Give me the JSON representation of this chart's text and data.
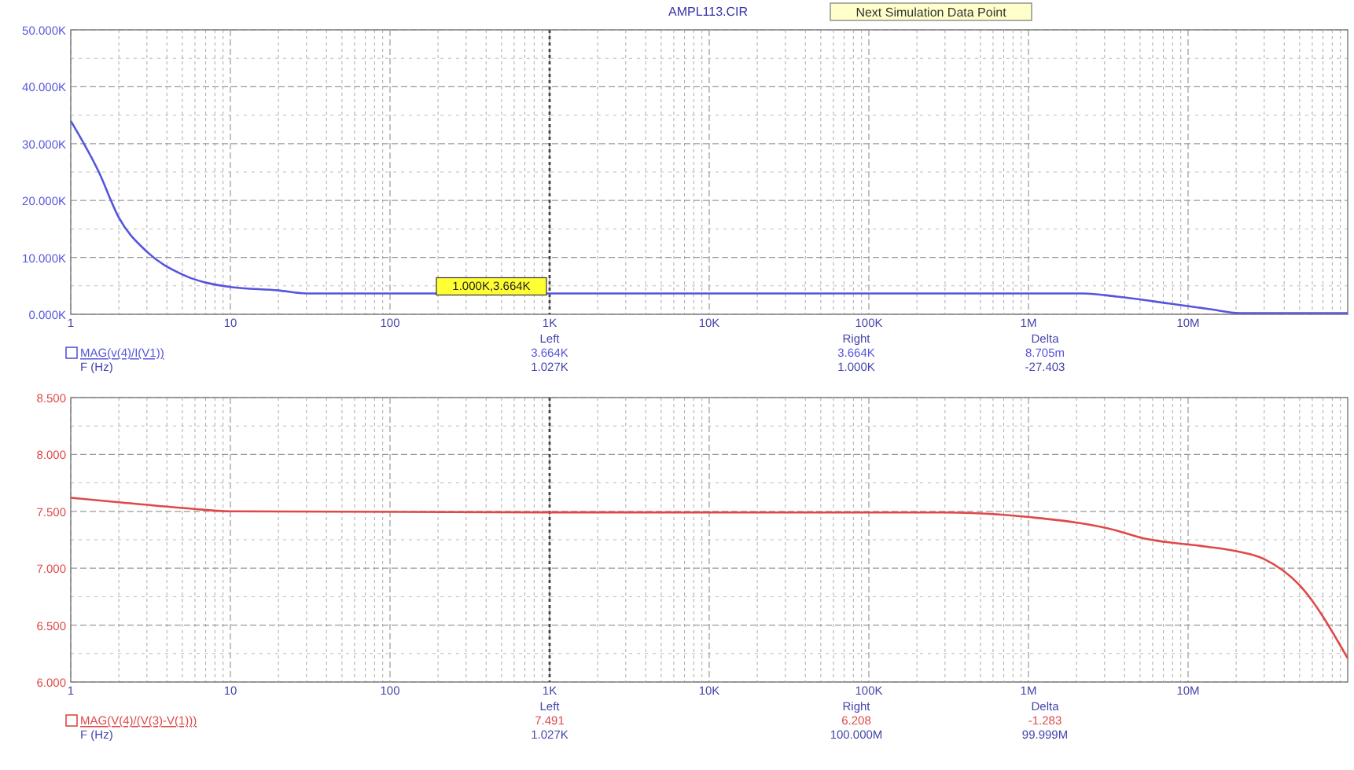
{
  "chart_data": [
    {
      "type": "line",
      "title": "AMPL113.CIR",
      "subtitle": "Next Simulation Data Point",
      "xlabel": "F (Hz)",
      "log": "x",
      "grid": true,
      "legend": "bottom left",
      "xlim": [
        1,
        100000000
      ],
      "xticks": [
        {
          "value": 1,
          "label": "1"
        },
        {
          "value": 10,
          "label": "10"
        },
        {
          "value": 100,
          "label": "100"
        },
        {
          "value": 1000,
          "label": "1K"
        },
        {
          "value": 10000,
          "label": "10K"
        },
        {
          "value": 100000,
          "label": "100K"
        },
        {
          "value": 1000000,
          "label": "1M"
        },
        {
          "value": 10000000,
          "label": "10M"
        }
      ],
      "ylim": [
        0,
        50000
      ],
      "yticks": [
        {
          "value": 0,
          "label": "0.000K"
        },
        {
          "value": 10000,
          "label": "10.000K"
        },
        {
          "value": 20000,
          "label": "20.000K"
        },
        {
          "value": 30000,
          "label": "30.000K"
        },
        {
          "value": 40000,
          "label": "40.000K"
        },
        {
          "value": 50000,
          "label": "50.000K"
        }
      ],
      "series": [
        {
          "name": "MAG(v(4)/I(V1))",
          "color": "#5555dd",
          "x": [
            1,
            1.5,
            2,
            3,
            5,
            10,
            20,
            30,
            1000,
            2200000,
            3600000,
            7600000,
            13700000,
            21000000,
            100000000
          ],
          "values": [
            34000,
            25000,
            17000,
            11000,
            7000,
            4800,
            4200,
            3664,
            3664,
            3664,
            3100,
            1900,
            900,
            200,
            200
          ]
        }
      ],
      "ref_lines": [
        {
          "axis": "x",
          "value": 1000,
          "color": "#444444",
          "line_style": "dotted"
        }
      ],
      "annotations": [
        {
          "text": "1.000K,3.664K",
          "x": 1000,
          "y": 3664
        },
        "Left",
        "3.664K",
        "1.027K",
        "Right",
        "3.664K",
        "1.000K",
        "Delta",
        "8.705m",
        "-27.403"
      ]
    },
    {
      "type": "line",
      "xlabel": "F (Hz)",
      "log": "x",
      "grid": true,
      "legend": "bottom left",
      "xlim": [
        1,
        100000000
      ],
      "xticks": [
        {
          "value": 1,
          "label": "1"
        },
        {
          "value": 10,
          "label": "10"
        },
        {
          "value": 100,
          "label": "100"
        },
        {
          "value": 1000,
          "label": "1K"
        },
        {
          "value": 10000,
          "label": "10K"
        },
        {
          "value": 100000,
          "label": "100K"
        },
        {
          "value": 1000000,
          "label": "1M"
        },
        {
          "value": 10000000,
          "label": "10M"
        }
      ],
      "ylim": [
        6,
        8.5
      ],
      "yticks": [
        {
          "value": 6,
          "label": "6.000"
        },
        {
          "value": 6.5,
          "label": "6.500"
        },
        {
          "value": 7,
          "label": "7.000"
        },
        {
          "value": 7.5,
          "label": "7.500"
        },
        {
          "value": 8,
          "label": "8.000"
        },
        {
          "value": 8.5,
          "label": "8.500"
        }
      ],
      "series": [
        {
          "name": "MAG(V(4)/(V(3)-V(1)))",
          "color": "#e04848",
          "x": [
            1,
            2,
            5,
            10,
            1027,
            300000,
            1000000,
            3600000,
            5000000,
            13000000,
            20000000,
            30000000,
            50000000,
            100000000
          ],
          "values": [
            7.62,
            7.58,
            7.53,
            7.5,
            7.491,
            7.49,
            7.45,
            7.33,
            7.27,
            7.19,
            7.15,
            7.08,
            6.85,
            6.208
          ]
        }
      ],
      "ref_lines": [
        {
          "axis": "x",
          "value": 1000,
          "color": "#444444",
          "line_style": "dotted"
        }
      ],
      "annotations": [
        "Left",
        "7.491",
        "1.027K",
        "Right",
        "6.208",
        "100.000M",
        "Delta",
        "-1.283",
        "99.999M"
      ]
    }
  ]
}
